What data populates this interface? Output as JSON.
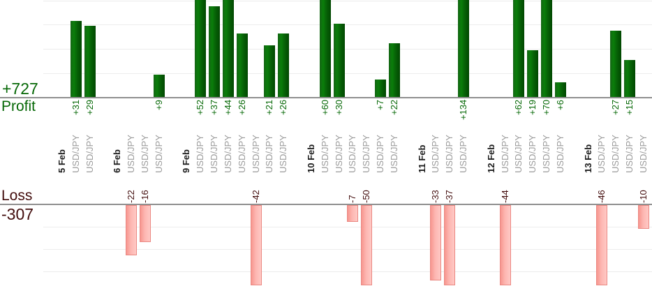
{
  "chart_data": {
    "type": "bar",
    "title": "",
    "symbol": "USD/JPY",
    "sections": {
      "profit": {
        "total_label": "+727",
        "axis_label": "Profit",
        "total": 727
      },
      "loss": {
        "total_label": "-307",
        "axis_label": "Loss",
        "total": -307
      }
    },
    "categories": [
      "5 Feb",
      "6 Feb",
      "9 Feb",
      "10 Feb",
      "11 Feb",
      "12 Feb",
      "13 Feb"
    ],
    "groups": [
      {
        "date": "5 Feb",
        "trades": [
          31,
          29
        ]
      },
      {
        "date": "6 Feb",
        "trades": [
          -22,
          -16,
          9
        ]
      },
      {
        "date": "9 Feb",
        "trades": [
          52,
          37,
          44,
          26,
          -42,
          21,
          26
        ]
      },
      {
        "date": "10 Feb",
        "trades": [
          60,
          30,
          -7,
          -50,
          7,
          22
        ]
      },
      {
        "date": "11 Feb",
        "trades": [
          -33,
          -37,
          134
        ]
      },
      {
        "date": "12 Feb",
        "trades": [
          -44,
          62,
          19,
          70,
          6
        ]
      },
      {
        "date": "13 Feb",
        "trades": [
          -46,
          27,
          15,
          -10
        ]
      }
    ],
    "xlabel": "",
    "ylabel": "",
    "grid": "horizontal gridlines every 10 units in both panels",
    "layout": "two stacked panels: profit bars rise above upper axis (bars over +40 clipped by top edge), loss bars hang below lower axis (bars over ~-35 clipped at panel bottom); one column per trade labeled with its symbol, columns grouped by date with one empty column between groups",
    "colors": {
      "profit_text": "#066806",
      "loss_text": "#420c0c",
      "date_text": "#1c1c1c",
      "symbol_text": "#9a9a9a",
      "profit_bar": "#0a7e0a",
      "loss_bar_fill": "#fdb6b1",
      "loss_bar_border": "#ea8882",
      "axis": "#8f8f8f",
      "gridline": "#ececec"
    }
  }
}
